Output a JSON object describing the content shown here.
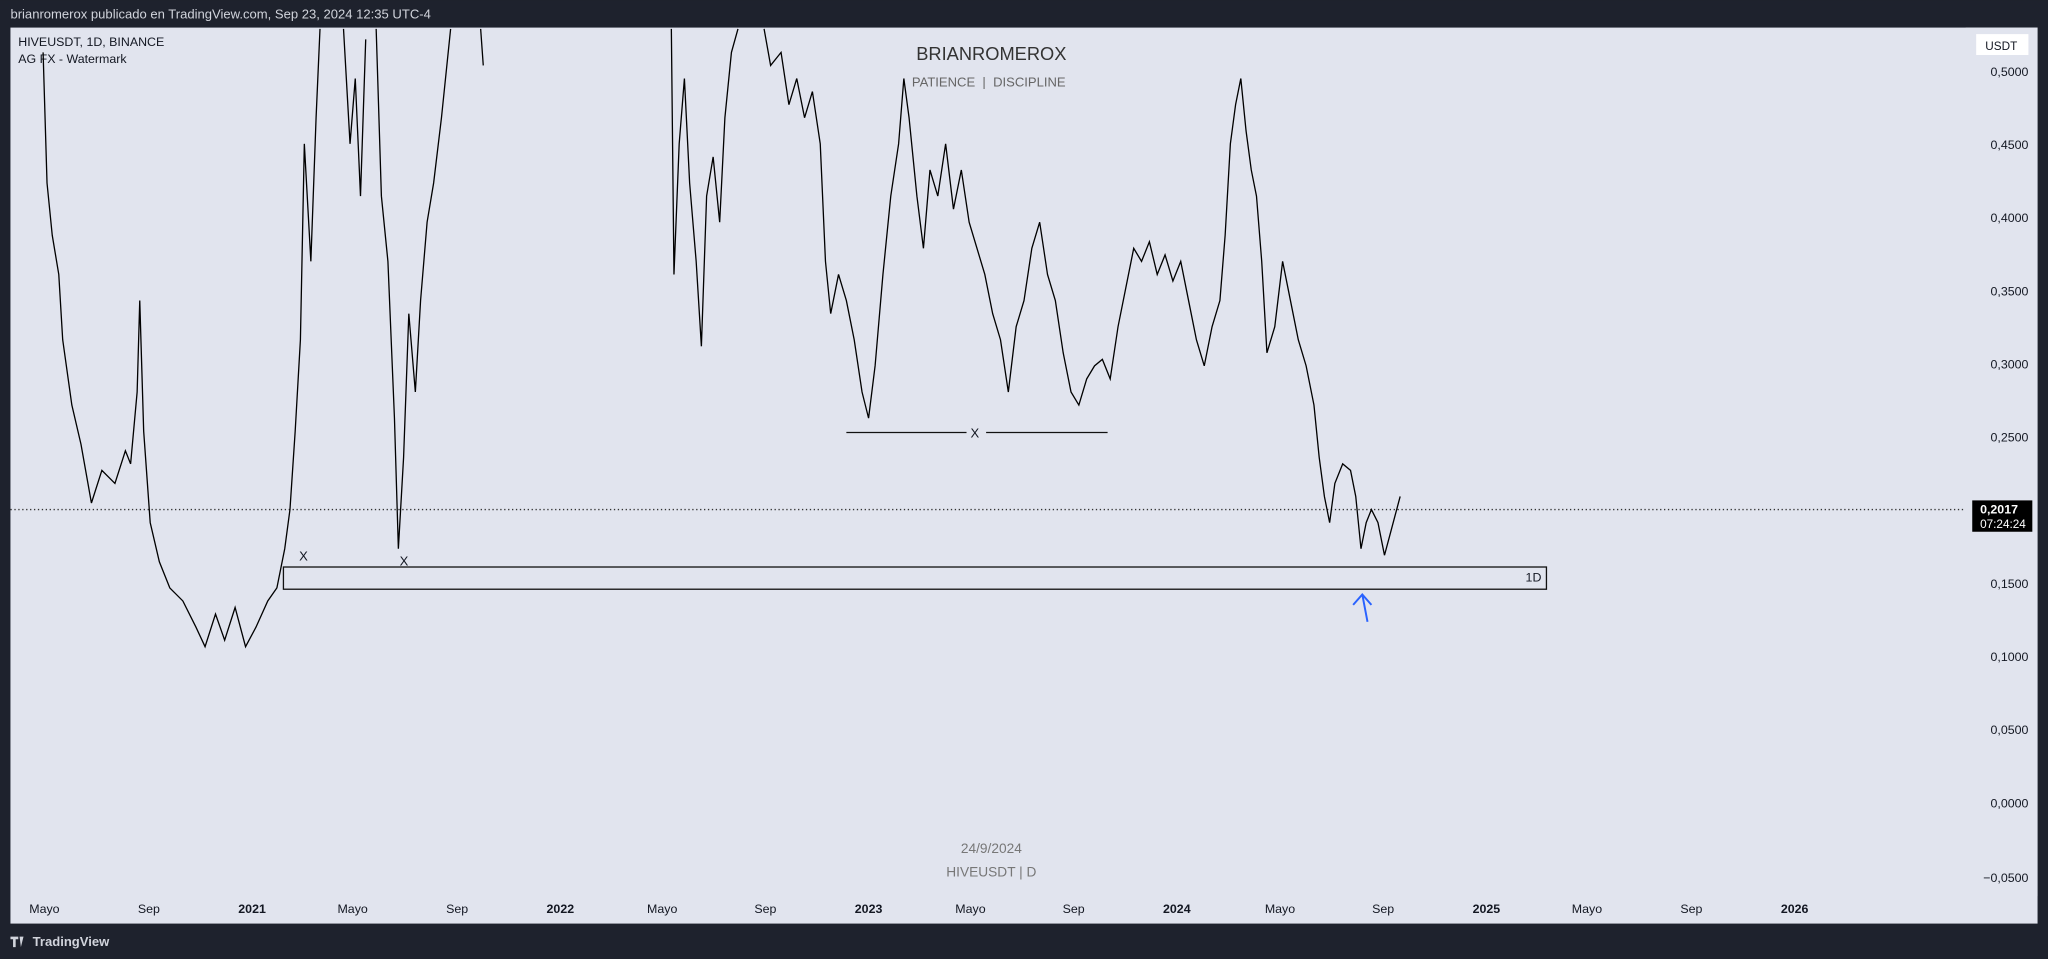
{
  "header": {
    "text": "brianromerox publicado en TradingView.com, Sep 23, 2024 12:35 UTC-4"
  },
  "legend": {
    "symbol": "HIVEUSDT, 1D, BINANCE",
    "indicator": "AG FX - Watermark"
  },
  "watermark": {
    "title": "BRIANROMEROX",
    "subtitle": "PATIENCE  |  DISCIPLINE",
    "date": "24/9/2024",
    "symbol": "HIVEUSDT | D"
  },
  "price_axis": {
    "currency": "USDT",
    "labels": [
      "0,5000",
      "0,4500",
      "0,4000",
      "0,3500",
      "0,3000",
      "0,2500",
      "0,1500",
      "0,1000",
      "0,0500",
      "0,0000",
      "−0,0500"
    ]
  },
  "price_tag": {
    "price": "0,2017",
    "countdown": "07:24:24"
  },
  "time_axis": {
    "labels": [
      "Mayo",
      "Sep",
      "2021",
      "Mayo",
      "Sep",
      "2022",
      "Mayo",
      "Sep",
      "2023",
      "Mayo",
      "Sep",
      "2024",
      "Mayo",
      "Sep",
      "2025",
      "Mayo",
      "Sep",
      "2026"
    ]
  },
  "annotations": {
    "zone": "1D",
    "marks": [
      "X",
      "X",
      "X"
    ]
  },
  "footer": {
    "brand": "TradingView"
  }
}
